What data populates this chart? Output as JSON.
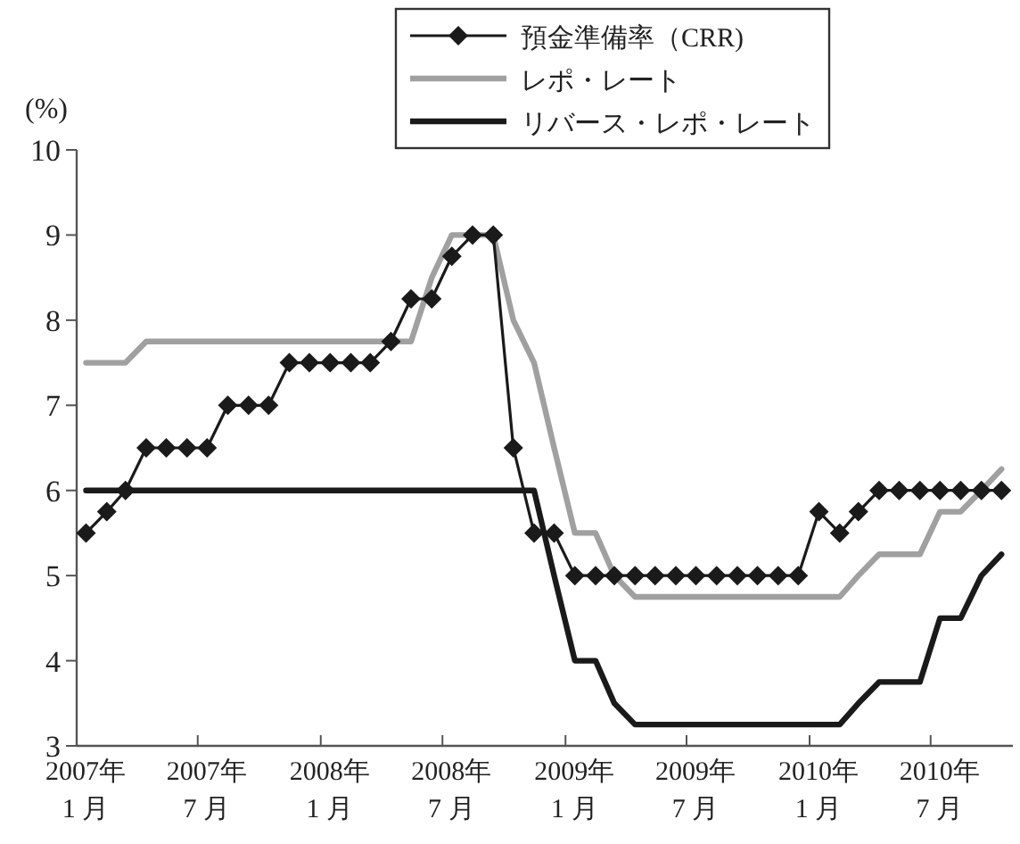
{
  "chart_data": {
    "type": "line",
    "ylabel": "(%)",
    "x": [
      "2007-01-15",
      "2007-02-15",
      "2007-03-15",
      "2007-04-15",
      "2007-05-15",
      "2007-06-15",
      "2007-07-15",
      "2007-08-15",
      "2007-09-15",
      "2007-10-15",
      "2007-11-15",
      "2007-12-15",
      "2008-01-15",
      "2008-02-15",
      "2008-03-15",
      "2008-04-15",
      "2008-05-15",
      "2008-06-15",
      "2008-07-15",
      "2008-08-15",
      "2008-09-15",
      "2008-10-15",
      "2008-11-15",
      "2008-12-15",
      "2009-01-15",
      "2009-02-15",
      "2009-03-15",
      "2009-04-15",
      "2009-05-15",
      "2009-06-15",
      "2009-07-15",
      "2009-08-15",
      "2009-09-15",
      "2009-10-15",
      "2009-11-15",
      "2009-12-15",
      "2010-01-15",
      "2010-02-15",
      "2010-03-15",
      "2010-04-15",
      "2010-05-15",
      "2010-06-15",
      "2010-07-15",
      "2010-08-15",
      "2010-09-15",
      "2010-10-15"
    ],
    "xlim": [
      "2007-01-01",
      "2010-11-01"
    ],
    "xticks": [
      {
        "value": "2007-01-01",
        "label": "2007年\n1 月"
      },
      {
        "value": "2007-07-01",
        "label": "2007年\n7 月"
      },
      {
        "value": "2008-01-01",
        "label": "2008年\n1 月"
      },
      {
        "value": "2008-07-01",
        "label": "2008年\n7 月"
      },
      {
        "value": "2009-01-01",
        "label": "2009年\n1 月"
      },
      {
        "value": "2009-07-01",
        "label": "2009年\n7 月"
      },
      {
        "value": "2010-01-01",
        "label": "2010年\n1 月"
      },
      {
        "value": "2010-07-01",
        "label": "2010年\n7 月"
      }
    ],
    "ylim": [
      3,
      10
    ],
    "yticks": [
      3,
      4,
      5,
      6,
      7,
      8,
      9,
      10
    ],
    "legend": "top",
    "line_style": "solid",
    "series": [
      {
        "name": "預金準備率（CRR)",
        "color": "#1a1a1a",
        "marker": "diamond",
        "values": [
          5.5,
          5.75,
          6.0,
          6.5,
          6.5,
          6.5,
          6.5,
          7.0,
          7.0,
          7.0,
          7.5,
          7.5,
          7.5,
          7.5,
          7.5,
          7.75,
          8.25,
          8.25,
          8.75,
          9.0,
          9.0,
          6.5,
          5.5,
          5.5,
          5.0,
          5.0,
          5.0,
          5.0,
          5.0,
          5.0,
          5.0,
          5.0,
          5.0,
          5.0,
          5.0,
          5.0,
          5.75,
          5.5,
          5.75,
          6.0,
          6.0,
          6.0,
          6.0,
          6.0,
          6.0,
          6.0
        ]
      },
      {
        "name": "レポ・レート",
        "color": "#a0a0a0",
        "marker": "none",
        "values": [
          7.5,
          7.5,
          7.5,
          7.75,
          7.75,
          7.75,
          7.75,
          7.75,
          7.75,
          7.75,
          7.75,
          7.75,
          7.75,
          7.75,
          7.75,
          7.75,
          7.75,
          8.5,
          9.0,
          9.0,
          9.0,
          8.0,
          7.5,
          6.5,
          5.5,
          5.5,
          5.0,
          4.75,
          4.75,
          4.75,
          4.75,
          4.75,
          4.75,
          4.75,
          4.75,
          4.75,
          4.75,
          4.75,
          5.0,
          5.25,
          5.25,
          5.25,
          5.75,
          5.75,
          6.0,
          6.25
        ]
      },
      {
        "name": "リバース・レポ・レート",
        "color": "#1a1a1a",
        "marker": "none",
        "values": [
          6.0,
          6.0,
          6.0,
          6.0,
          6.0,
          6.0,
          6.0,
          6.0,
          6.0,
          6.0,
          6.0,
          6.0,
          6.0,
          6.0,
          6.0,
          6.0,
          6.0,
          6.0,
          6.0,
          6.0,
          6.0,
          6.0,
          6.0,
          5.0,
          4.0,
          4.0,
          3.5,
          3.25,
          3.25,
          3.25,
          3.25,
          3.25,
          3.25,
          3.25,
          3.25,
          3.25,
          3.25,
          3.25,
          3.5,
          3.75,
          3.75,
          3.75,
          4.5,
          4.5,
          5.0,
          5.25
        ]
      }
    ]
  }
}
